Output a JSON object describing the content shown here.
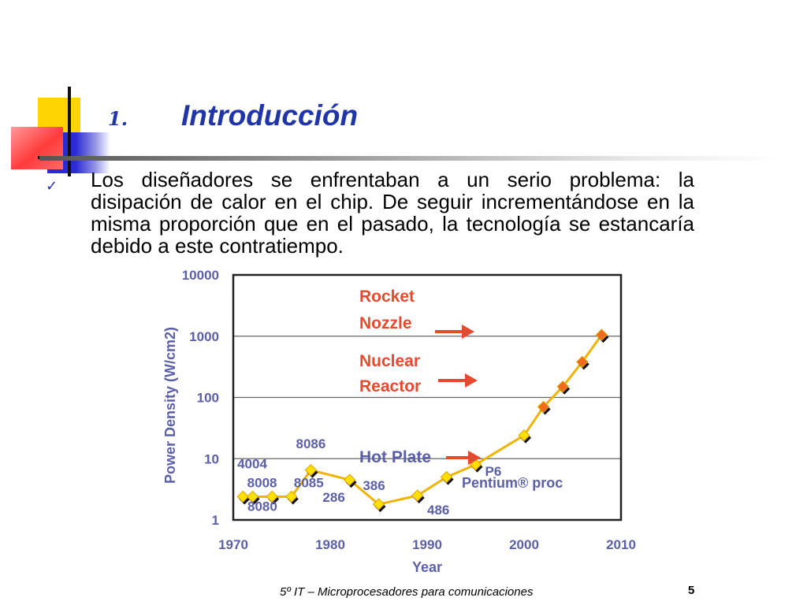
{
  "slide": {
    "title_number": "1.",
    "title": "Introducción",
    "bullet": "Los diseñadores se enfrentaban a un serio problema: la disipación de calor en el chip. De seguir incrementándose en la misma proporción que en el pasado, la tecnología se estancaría debido a este contratiempo.",
    "bullet_icon": "check-icon",
    "footer": "5º IT – Microprocesadores para comunicaciones",
    "page_number": "5"
  },
  "colors": {
    "title": "#1f35a8",
    "deco_yellow": "#ffd400",
    "deco_red": "#ff3b3b",
    "deco_blue": "#2b2bd6",
    "axis_label": "#5b5fa8",
    "line": "#f0b400",
    "annotation_red": "#e64a2e"
  },
  "chart_data": {
    "type": "line",
    "y_scale": "log",
    "ylim": [
      1,
      10000
    ],
    "xlim": [
      1970,
      2010
    ],
    "xlabel": "Year",
    "ylabel": "Power Density (W/cm2)",
    "x_ticks": [
      "1970",
      "1980",
      "1990",
      "2000",
      "2010"
    ],
    "y_ticks": [
      "1",
      "10",
      "100",
      "1000",
      "10000"
    ],
    "reference_lines": [
      10,
      100,
      1000
    ],
    "grid": false,
    "points": [
      {
        "x": 1971,
        "y": 2.4,
        "label": "4004"
      },
      {
        "x": 1972,
        "y": 2.4,
        "label": "8008"
      },
      {
        "x": 1974,
        "y": 2.4,
        "label": "8080"
      },
      {
        "x": 1976,
        "y": 2.4,
        "label": "8085"
      },
      {
        "x": 1978,
        "y": 6.5,
        "label": "8086"
      },
      {
        "x": 1982,
        "y": 4.5,
        "label": "286"
      },
      {
        "x": 1985,
        "y": 1.8,
        "label": "386"
      },
      {
        "x": 1989,
        "y": 2.5,
        "label": "486"
      },
      {
        "x": 1992,
        "y": 5,
        "label": ""
      },
      {
        "x": 1995,
        "y": 8,
        "label": "P6"
      },
      {
        "x": 2000,
        "y": 24,
        "label": ""
      },
      {
        "x": 2002,
        "y": 70,
        "label": ""
      },
      {
        "x": 2004,
        "y": 150,
        "label": ""
      },
      {
        "x": 2006,
        "y": 380,
        "label": ""
      },
      {
        "x": 2008,
        "y": 1050,
        "label": ""
      }
    ],
    "annotations": [
      {
        "text": "Rocket",
        "color": "red"
      },
      {
        "text": "Nozzle",
        "color": "red"
      },
      {
        "text": "Nuclear",
        "color": "red"
      },
      {
        "text": "Reactor",
        "color": "red"
      },
      {
        "text": "Hot Plate",
        "color": "blue"
      },
      {
        "text": "Pentium® proc",
        "color": "blue"
      }
    ]
  }
}
